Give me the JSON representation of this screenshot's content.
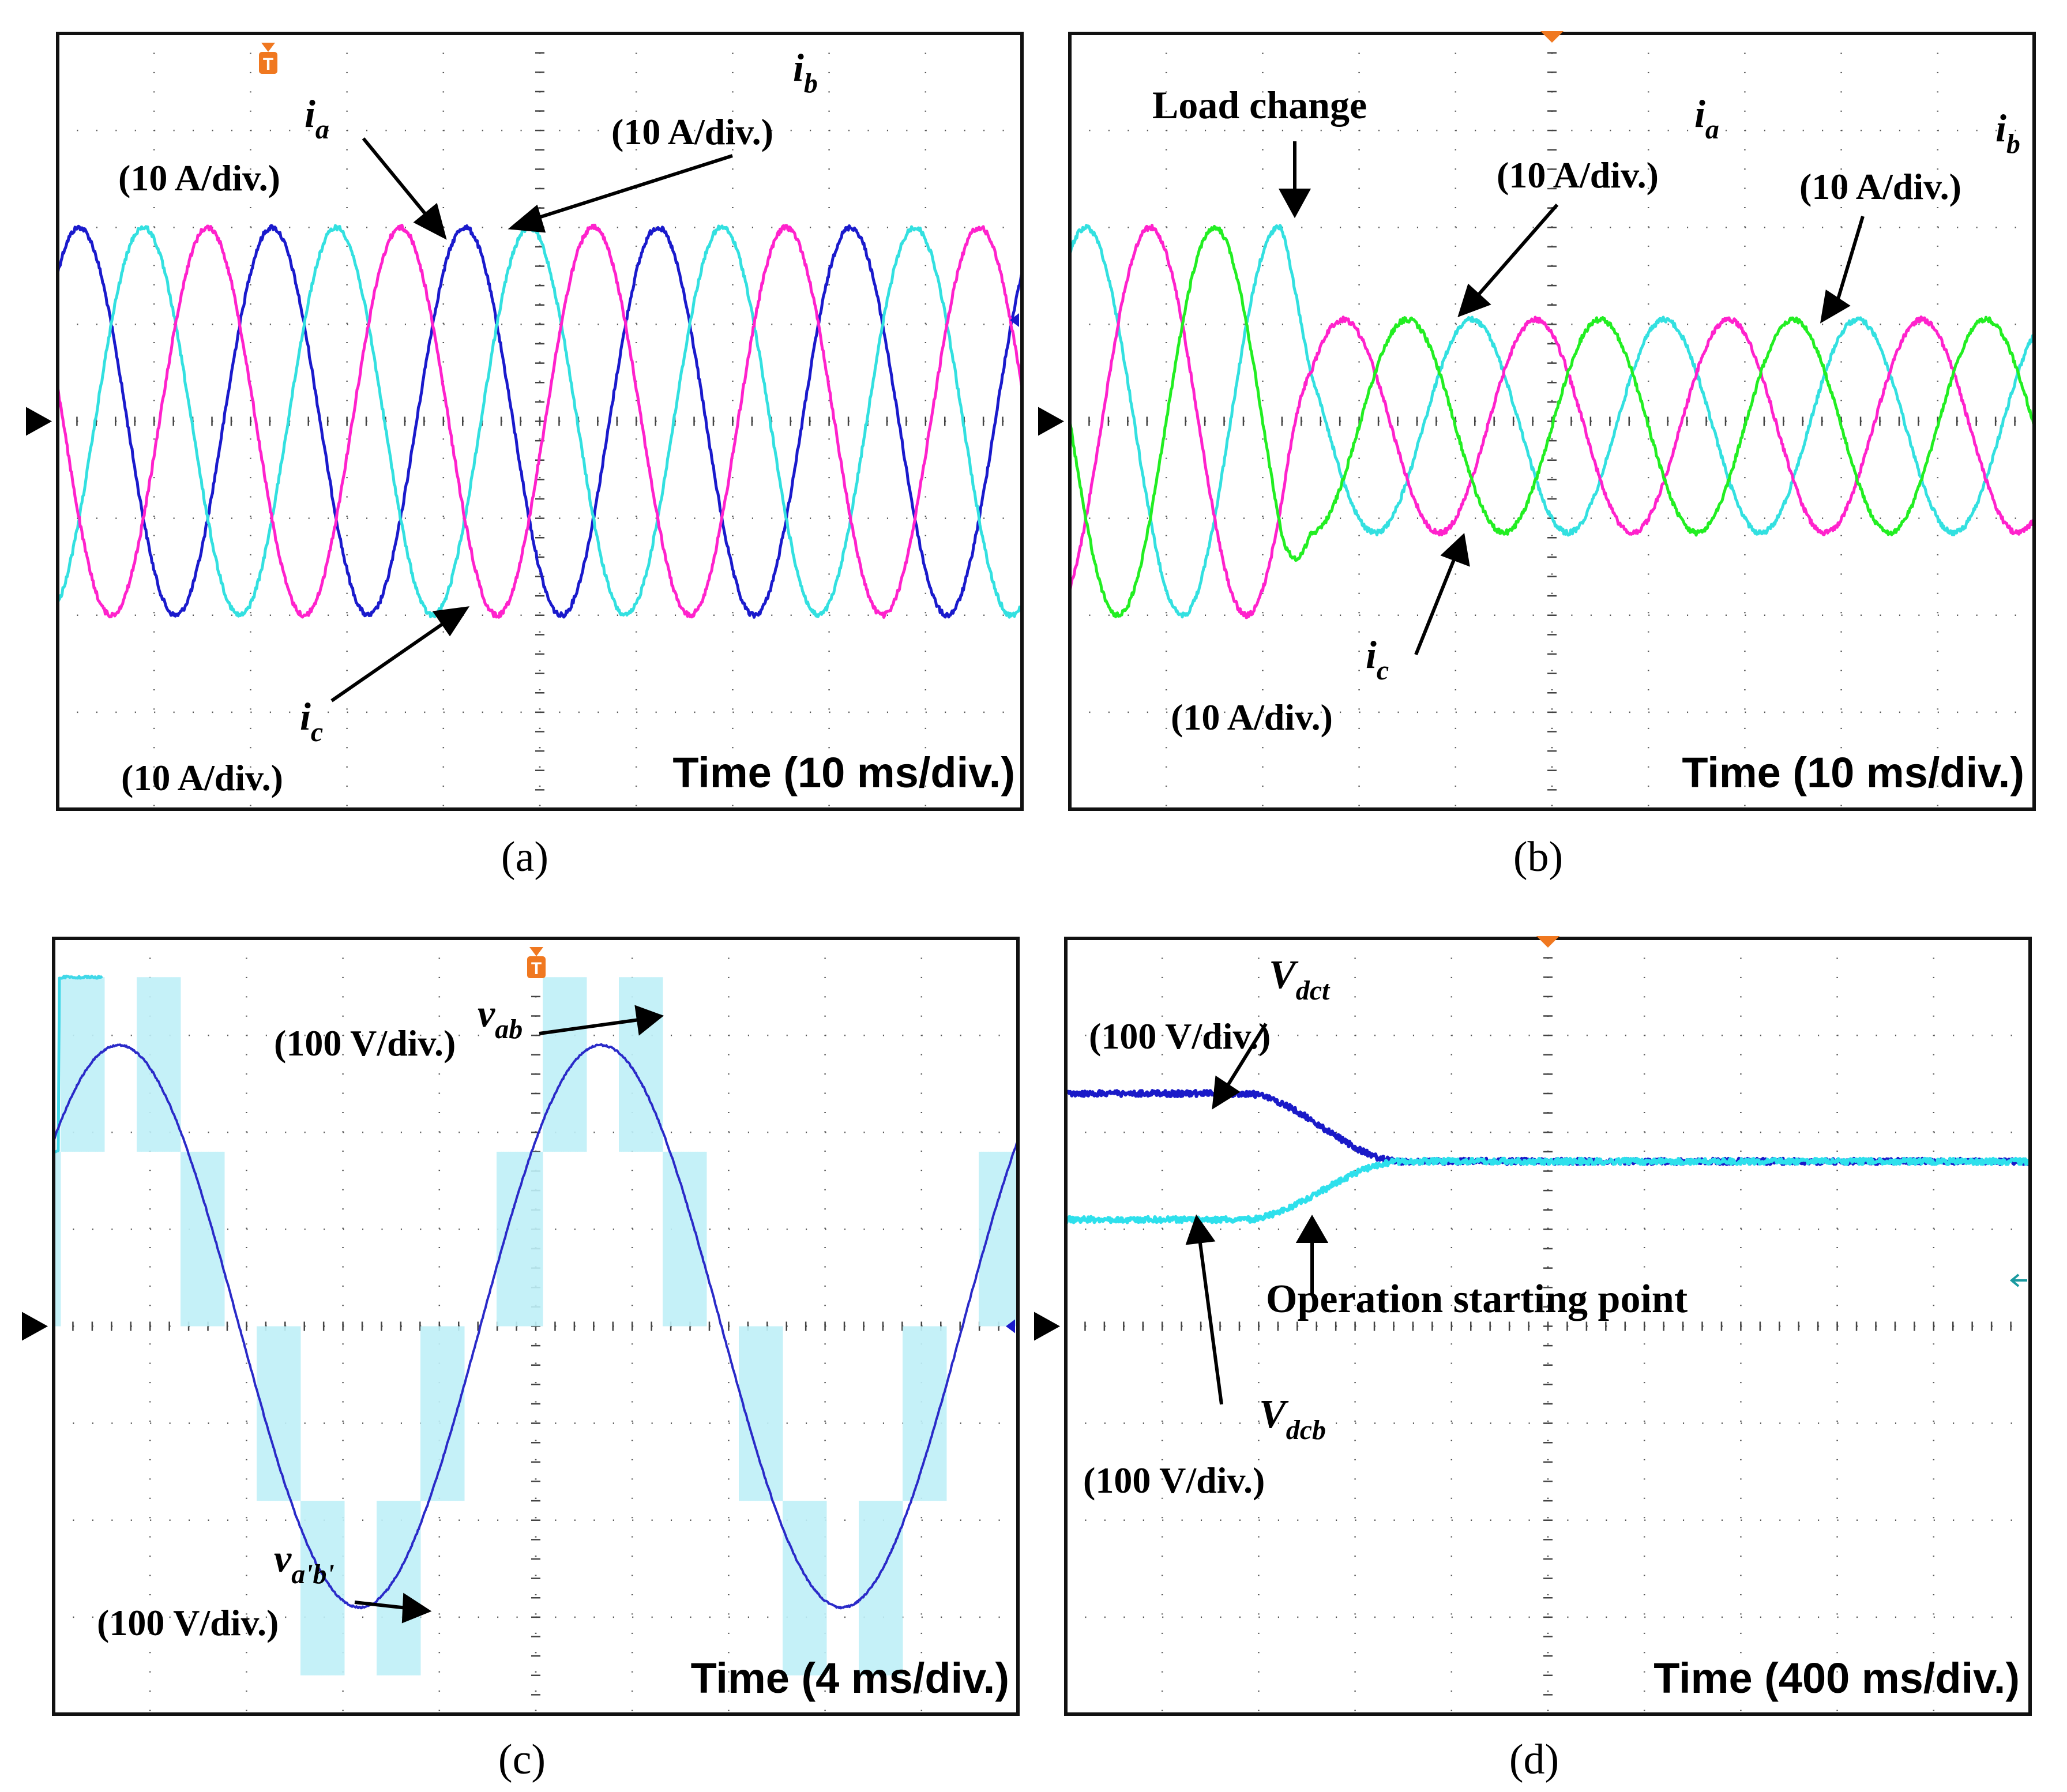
{
  "chart_data": [
    {
      "type": "line",
      "caption": "(a)",
      "time_label": "Time (10 ms/div.)",
      "x_div_ms": 10,
      "grid": true,
      "series": [
        {
          "name": "i_a",
          "label_main": "i",
          "label_sub": "a",
          "scale_label": "(10 A/div.)",
          "color": "#1a1acc",
          "amplitude_div": 2.0,
          "offset_div": 0,
          "frequency_hz": 50,
          "phase_deg": 50
        },
        {
          "name": "i_b",
          "label_main": "i",
          "label_sub": "b",
          "scale_label": "(10 A/div.)",
          "color": "#33e0e0",
          "amplitude_div": 2.0,
          "offset_div": 0,
          "frequency_hz": 50,
          "phase_deg": -70
        },
        {
          "name": "i_c",
          "label_main": "i",
          "label_sub": "c",
          "scale_label": "(10 A/div.)",
          "color": "#ff22cc",
          "amplitude_div": 2.0,
          "offset_div": 0,
          "frequency_hz": 50,
          "phase_deg": 170
        }
      ]
    },
    {
      "type": "line",
      "caption": "(b)",
      "time_label": "Time (10 ms/div.)",
      "x_div_ms": 10,
      "annotation": "Load change",
      "load_change_ms": 22,
      "grid": true,
      "series": [
        {
          "name": "i_a",
          "label_main": "i",
          "label_sub": "a",
          "scale_label": "(10 A/div.)",
          "color": "#33e0e0",
          "amp_before_div": 2.0,
          "amp_after_div": 1.1,
          "offset_after_div": -0.05,
          "frequency_hz": 50,
          "phase_deg": 60
        },
        {
          "name": "i_b",
          "label_main": "i",
          "label_sub": "b",
          "scale_label": "(10 A/div.)",
          "color": "#ff22cc",
          "amp_before_div": 2.0,
          "amp_after_div": 1.1,
          "offset_after_div": -0.05,
          "frequency_hz": 50,
          "phase_deg": -60
        },
        {
          "name": "i_c",
          "label_main": "i",
          "label_sub": "c",
          "scale_label": "(10 A/div.)",
          "color": "#22ee22",
          "amp_before_div": 2.0,
          "amp_after_div": 1.1,
          "offset_after_div": -0.05,
          "frequency_hz": 50,
          "phase_deg": 180
        }
      ]
    },
    {
      "type": "line",
      "caption": "(c)",
      "time_label": "Time (4 ms/div.)",
      "x_div_ms": 4,
      "grid": true,
      "series": [
        {
          "name": "v_ab",
          "label_main": "v",
          "label_sub": "ab",
          "scale_label": "(100 V/div.)",
          "color": "#40d8e8",
          "levels_div": [
            -3.6,
            -1.8,
            0,
            1.8,
            3.6
          ],
          "frequency_hz": 50
        },
        {
          "name": "v_a'b'",
          "label_main": "v",
          "label_sub": "a'b'",
          "scale_label": "(100 V/div.)",
          "color": "#2a2ac8",
          "amplitude_div": 2.9,
          "frequency_hz": 50
        }
      ]
    },
    {
      "type": "line",
      "caption": "(d)",
      "time_label": "Time (400 ms/div.)",
      "x_div_ms": 400,
      "annotation": "Operation starting point",
      "start_ms": 740,
      "grid": true,
      "series": [
        {
          "name": "V_dct",
          "label_main": "V",
          "label_sub": "dct",
          "scale_label": "(100 V/div.)",
          "color": "#1a1ac8",
          "initial_div": 2.4,
          "final_div": 1.7
        },
        {
          "name": "V_dcb",
          "label_main": "V",
          "label_sub": "dcb",
          "scale_label": "(100 V/div.)",
          "color": "#2ee0ec",
          "initial_div": 1.1,
          "final_div": 1.7
        }
      ]
    }
  ]
}
